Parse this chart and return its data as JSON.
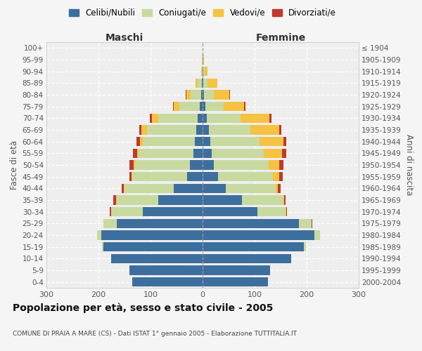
{
  "age_groups": [
    "0-4",
    "5-9",
    "10-14",
    "15-19",
    "20-24",
    "25-29",
    "30-34",
    "35-39",
    "40-44",
    "45-49",
    "50-54",
    "55-59",
    "60-64",
    "65-69",
    "70-74",
    "75-79",
    "80-84",
    "85-89",
    "90-94",
    "95-99",
    "100+"
  ],
  "birth_years": [
    "2000-2004",
    "1995-1999",
    "1990-1994",
    "1985-1989",
    "1980-1984",
    "1975-1979",
    "1970-1974",
    "1965-1969",
    "1960-1964",
    "1955-1959",
    "1950-1954",
    "1945-1949",
    "1940-1944",
    "1935-1939",
    "1930-1934",
    "1925-1929",
    "1920-1924",
    "1915-1919",
    "1910-1914",
    "1905-1909",
    "≤ 1904"
  ],
  "male": {
    "celibi": [
      135,
      140,
      175,
      190,
      195,
      165,
      115,
      85,
      55,
      30,
      25,
      18,
      15,
      12,
      10,
      5,
      3,
      2,
      0,
      0,
      0
    ],
    "coniugati": [
      0,
      0,
      0,
      3,
      8,
      25,
      60,
      80,
      95,
      105,
      105,
      105,
      100,
      95,
      75,
      40,
      20,
      8,
      2,
      1,
      0
    ],
    "vedovi": [
      0,
      0,
      0,
      0,
      0,
      0,
      0,
      1,
      1,
      1,
      2,
      3,
      5,
      10,
      12,
      10,
      8,
      4,
      1,
      0,
      0
    ],
    "divorziati": [
      0,
      0,
      0,
      0,
      0,
      1,
      3,
      5,
      4,
      5,
      8,
      8,
      7,
      5,
      4,
      2,
      1,
      0,
      0,
      0,
      0
    ]
  },
  "female": {
    "nubili": [
      125,
      130,
      170,
      195,
      215,
      185,
      105,
      75,
      45,
      30,
      22,
      18,
      15,
      12,
      8,
      5,
      3,
      2,
      1,
      0,
      0
    ],
    "coniugate": [
      0,
      0,
      0,
      3,
      10,
      25,
      55,
      80,
      95,
      105,
      105,
      100,
      95,
      80,
      65,
      35,
      18,
      8,
      3,
      1,
      0
    ],
    "vedove": [
      0,
      0,
      0,
      0,
      0,
      0,
      1,
      2,
      5,
      12,
      20,
      35,
      45,
      55,
      55,
      40,
      30,
      18,
      5,
      2,
      0
    ],
    "divorziate": [
      0,
      0,
      0,
      0,
      0,
      1,
      1,
      3,
      5,
      7,
      9,
      8,
      6,
      4,
      5,
      2,
      2,
      0,
      0,
      0,
      0
    ]
  },
  "colors": {
    "celibi_nubili": "#3d6f9e",
    "coniugati": "#c8daa0",
    "vedovi": "#f5c242",
    "divorziati": "#c0392b"
  },
  "title": "Popolazione per età, sesso e stato civile - 2005",
  "subtitle": "COMUNE DI PRAIA A MARE (CS) - Dati ISTAT 1° gennaio 2005 - Elaborazione TUTTITALIA.IT",
  "xlabel_left": "Maschi",
  "xlabel_right": "Femmine",
  "ylabel_left": "Fasce di età",
  "ylabel_right": "Anni di nascita",
  "xlim": 300,
  "legend_labels": [
    "Celibi/Nubili",
    "Coniugati/e",
    "Vedovi/e",
    "Divorziati/e"
  ],
  "background_color": "#f5f5f5",
  "plot_bg": "#eeeeee"
}
